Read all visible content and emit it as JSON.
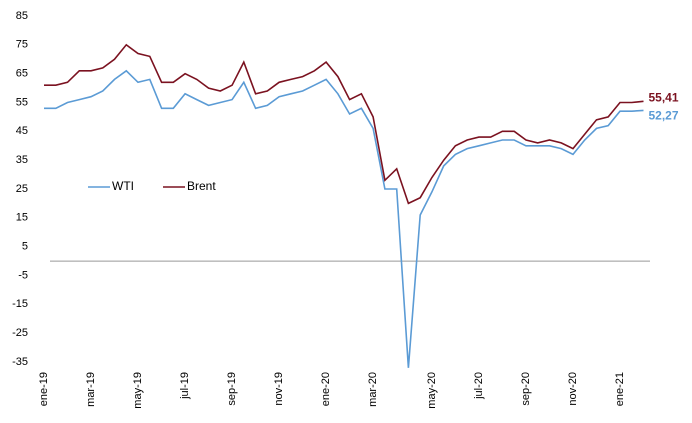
{
  "chart_data": {
    "type": "line",
    "categories": [
      "ene-19",
      null,
      null,
      null,
      "mar-19",
      null,
      null,
      null,
      "may-19",
      null,
      null,
      null,
      "jul-19",
      null,
      null,
      null,
      "sep-19",
      null,
      null,
      null,
      "nov-19",
      null,
      null,
      null,
      "ene-20",
      null,
      null,
      null,
      "mar-20",
      null,
      null,
      null,
      null,
      "may-20",
      null,
      null,
      null,
      "jul-20",
      null,
      null,
      null,
      "sep-20",
      null,
      null,
      null,
      "nov-20",
      null,
      null,
      null,
      "ene-21",
      null,
      null
    ],
    "series": [
      {
        "name": "WTI",
        "color": "#5b9bd5",
        "values": [
          53,
          53,
          55,
          56,
          57,
          59,
          63,
          66,
          62,
          63,
          53,
          53,
          58,
          56,
          54,
          55,
          56,
          62,
          53,
          54,
          57,
          58,
          59,
          61,
          63,
          58,
          51,
          53,
          46,
          25,
          25,
          -37,
          16,
          24,
          33,
          37,
          39,
          40,
          41,
          42,
          42,
          40,
          40,
          40,
          39,
          37,
          42,
          46,
          47,
          52,
          52,
          52.27
        ],
        "value_labels": [
          null,
          null,
          null,
          null,
          null,
          null,
          null,
          null,
          null,
          null,
          null,
          null,
          null,
          null,
          null,
          null,
          null,
          null,
          null,
          null,
          null,
          null,
          null,
          null,
          null,
          null,
          null,
          null,
          null,
          null,
          null,
          null,
          null,
          null,
          null,
          null,
          null,
          null,
          null,
          null,
          null,
          null,
          null,
          null,
          null,
          null,
          null,
          null,
          null,
          null,
          null,
          "52,27"
        ]
      },
      {
        "name": "Brent",
        "color": "#7b1220",
        "values": [
          61,
          61,
          62,
          66,
          66,
          67,
          70,
          75,
          72,
          71,
          62,
          62,
          65,
          63,
          60,
          59,
          61,
          69,
          58,
          59,
          62,
          63,
          64,
          66,
          69,
          64,
          56,
          58,
          50,
          28,
          32,
          20,
          22,
          29,
          35,
          40,
          42,
          43,
          43,
          45,
          45,
          42,
          41,
          42,
          41,
          39,
          44,
          49,
          50,
          55,
          55,
          55.41
        ],
        "value_labels": [
          null,
          null,
          null,
          null,
          null,
          null,
          null,
          null,
          null,
          null,
          null,
          null,
          null,
          null,
          null,
          null,
          null,
          null,
          null,
          null,
          null,
          null,
          null,
          null,
          null,
          null,
          null,
          null,
          null,
          null,
          null,
          null,
          null,
          null,
          null,
          null,
          null,
          null,
          null,
          null,
          null,
          null,
          null,
          null,
          null,
          null,
          null,
          null,
          null,
          null,
          null,
          "55,41"
        ]
      }
    ],
    "ylim": [
      -35,
      85
    ],
    "yticks": [
      -35,
      -25,
      -15,
      -5,
      5,
      15,
      25,
      35,
      45,
      55,
      65,
      75,
      85
    ],
    "legend": "left"
  }
}
